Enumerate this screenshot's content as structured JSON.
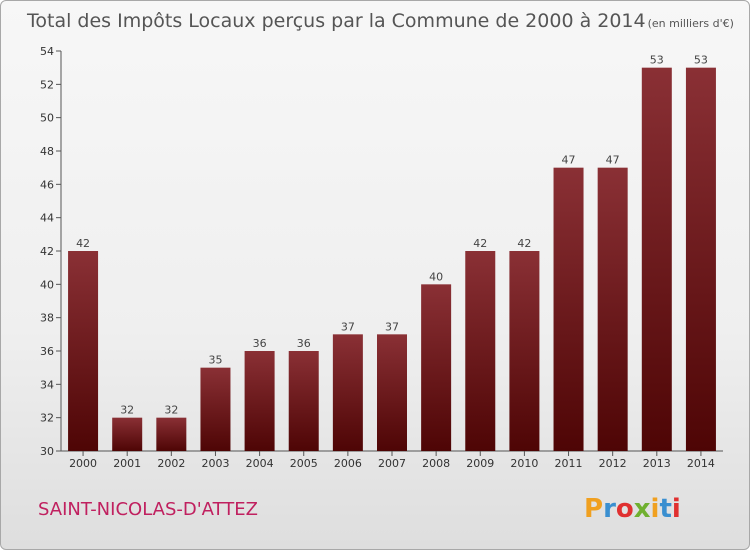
{
  "chart_data": {
    "type": "bar",
    "title": "Total des Impôts Locaux perçus par la Commune de 2000 à 2014",
    "unit": "(en milliers d'€)",
    "categories": [
      "2000",
      "2001",
      "2002",
      "2003",
      "2004",
      "2005",
      "2006",
      "2007",
      "2008",
      "2009",
      "2010",
      "2011",
      "2012",
      "2013",
      "2014"
    ],
    "values": [
      42,
      32,
      32,
      35,
      36,
      36,
      37,
      37,
      40,
      42,
      42,
      47,
      47,
      53,
      53
    ],
    "ylim": [
      30,
      54
    ],
    "yticks": [
      30,
      32,
      34,
      36,
      38,
      40,
      42,
      44,
      46,
      48,
      50,
      52,
      54
    ],
    "xlabel": "",
    "ylabel": "",
    "grid": false
  },
  "commune_name": "SAINT-NICOLAS-D'ATTEZ",
  "logo": {
    "letters": [
      "P",
      "r",
      "o",
      "x",
      "i",
      "t",
      "i"
    ],
    "colors": [
      "#f0a020",
      "#3a8fd0",
      "#e03030",
      "#70b030",
      "#f0a020",
      "#3a8fd0",
      "#e03030"
    ]
  },
  "colors": {
    "bar_top": "#8a3035",
    "bar_bottom": "#4e0505",
    "axis": "#555555"
  }
}
